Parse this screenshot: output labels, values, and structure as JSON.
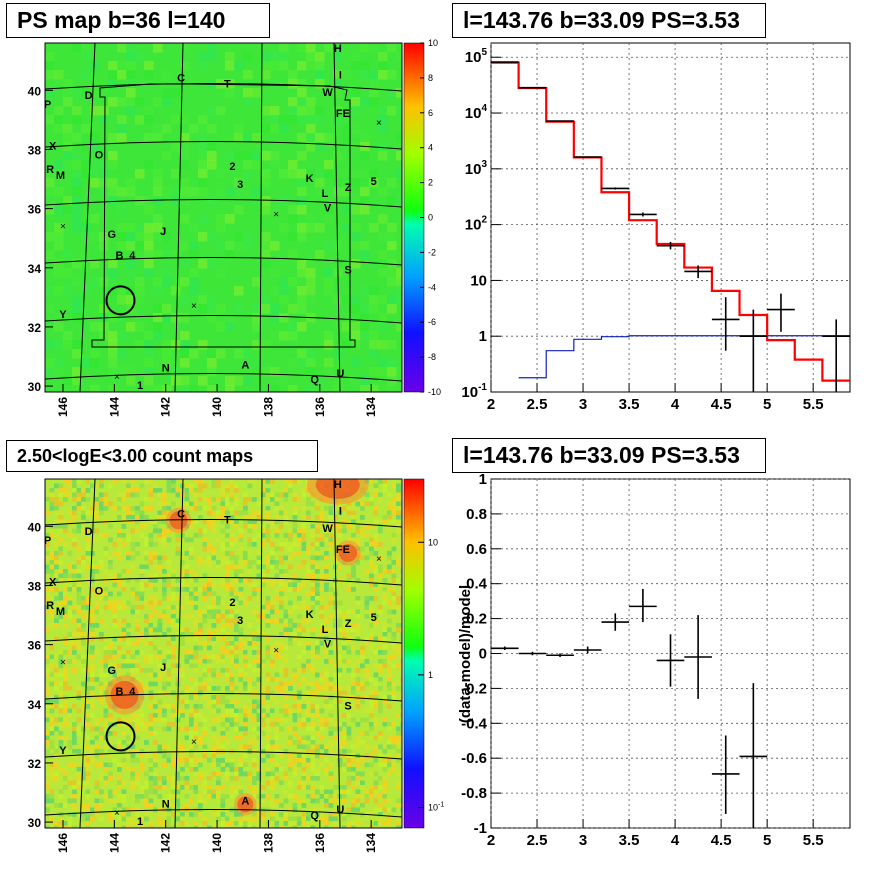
{
  "chart_data": [
    {
      "type": "heatmap",
      "title": "PS map b=36 l=140",
      "xlim": [
        146.7,
        132.8
      ],
      "ylim": [
        29.8,
        41.6
      ],
      "x_ticks": [
        146,
        144,
        142,
        140,
        138,
        136,
        134
      ],
      "y_ticks": [
        30,
        32,
        34,
        36,
        38,
        40
      ],
      "colorbar": {
        "min": -10,
        "max": 10,
        "ticks": [
          10,
          8,
          6,
          4,
          2,
          0,
          -2,
          -4,
          -6,
          -8,
          -10
        ]
      },
      "circle": {
        "l": 143.76,
        "b": 32.9
      },
      "source_labels": [
        {
          "t": "H",
          "l": 135.3,
          "b": 41.3
        },
        {
          "t": "C",
          "l": 141.4,
          "b": 40.3
        },
        {
          "t": "T",
          "l": 139.6,
          "b": 40.1
        },
        {
          "t": "I",
          "l": 135.2,
          "b": 40.4
        },
        {
          "t": "W",
          "l": 135.7,
          "b": 39.8
        },
        {
          "t": "D",
          "l": 145.0,
          "b": 39.7
        },
        {
          "t": "P",
          "l": 146.6,
          "b": 39.4
        },
        {
          "t": "FE",
          "l": 135.1,
          "b": 39.1
        },
        {
          "t": "X",
          "l": 146.4,
          "b": 38.0
        },
        {
          "t": "O",
          "l": 144.6,
          "b": 37.7
        },
        {
          "t": "2",
          "l": 139.4,
          "b": 37.3
        },
        {
          "t": "R",
          "l": 146.5,
          "b": 37.2
        },
        {
          "t": "M",
          "l": 146.1,
          "b": 37.0
        },
        {
          "t": "K",
          "l": 136.4,
          "b": 36.9
        },
        {
          "t": "3",
          "l": 139.1,
          "b": 36.7
        },
        {
          "t": "5",
          "l": 133.9,
          "b": 36.8
        },
        {
          "t": "Z",
          "l": 134.9,
          "b": 36.6
        },
        {
          "t": "L",
          "l": 135.8,
          "b": 36.4
        },
        {
          "t": "V",
          "l": 135.7,
          "b": 35.9
        },
        {
          "t": "G",
          "l": 144.1,
          "b": 35.0
        },
        {
          "t": "J",
          "l": 142.1,
          "b": 35.1
        },
        {
          "t": "B",
          "l": 143.8,
          "b": 34.3
        },
        {
          "t": "4",
          "l": 143.3,
          "b": 34.3
        },
        {
          "t": "S",
          "l": 134.9,
          "b": 33.8
        },
        {
          "t": "Y",
          "l": 146.0,
          "b": 32.3
        },
        {
          "t": "N",
          "l": 142.0,
          "b": 30.5
        },
        {
          "t": "A",
          "l": 138.9,
          "b": 30.6
        },
        {
          "t": "U",
          "l": 135.2,
          "b": 30.3
        },
        {
          "t": "Q",
          "l": 136.2,
          "b": 30.1
        },
        {
          "t": "1",
          "l": 143.0,
          "b": 29.9
        }
      ],
      "cross_markers": [
        {
          "l": 133.7,
          "b": 38.9
        },
        {
          "l": 137.7,
          "b": 35.8
        },
        {
          "l": 146.0,
          "b": 35.4
        },
        {
          "l": 140.9,
          "b": 32.7
        },
        {
          "l": 143.9,
          "b": 30.3
        }
      ]
    },
    {
      "type": "line",
      "title": "l=143.76 b=33.09 PS=3.53",
      "xlim": [
        2,
        5.9
      ],
      "ylim": [
        0.1,
        180000
      ],
      "log_y": true,
      "x_ticks": [
        "2",
        "2.5",
        "3",
        "3.5",
        "4",
        "4.5",
        "5",
        "5.5"
      ],
      "y_ticks": [
        {
          "v": 0.1,
          "base": "10",
          "exp": "-1"
        },
        {
          "v": 1,
          "base": "1",
          "exp": ""
        },
        {
          "v": 10,
          "base": "10",
          "exp": ""
        },
        {
          "v": 100,
          "base": "10",
          "exp": "2"
        },
        {
          "v": 1000,
          "base": "10",
          "exp": "3"
        },
        {
          "v": 10000,
          "base": "10",
          "exp": "4"
        },
        {
          "v": 100000,
          "base": "10",
          "exp": "5"
        }
      ],
      "model_total": [
        {
          "x0": 2.0,
          "x1": 2.3,
          "y": 80000
        },
        {
          "x0": 2.3,
          "x1": 2.6,
          "y": 28000
        },
        {
          "x0": 2.6,
          "x1": 2.9,
          "y": 7000
        },
        {
          "x0": 2.9,
          "x1": 3.2,
          "y": 1600
        },
        {
          "x0": 3.2,
          "x1": 3.5,
          "y": 380
        },
        {
          "x0": 3.5,
          "x1": 3.8,
          "y": 120
        },
        {
          "x0": 3.8,
          "x1": 4.1,
          "y": 45
        },
        {
          "x0": 4.1,
          "x1": 4.4,
          "y": 17
        },
        {
          "x0": 4.4,
          "x1": 4.7,
          "y": 6.5
        },
        {
          "x0": 4.7,
          "x1": 5.0,
          "y": 2.4
        },
        {
          "x0": 5.0,
          "x1": 5.3,
          "y": 0.85
        },
        {
          "x0": 5.3,
          "x1": 5.6,
          "y": 0.38
        },
        {
          "x0": 5.6,
          "x1": 5.9,
          "y": 0.16
        }
      ],
      "model_ps": [
        {
          "x0": 2.3,
          "x1": 2.6,
          "y": 0.18
        },
        {
          "x0": 2.6,
          "x1": 2.9,
          "y": 0.55
        },
        {
          "x0": 2.9,
          "x1": 3.2,
          "y": 0.88
        },
        {
          "x0": 3.2,
          "x1": 3.5,
          "y": 0.98
        },
        {
          "x0": 3.5,
          "x1": 5.9,
          "y": 1.02
        }
      ],
      "data_points": [
        {
          "x": 2.15,
          "y": 82000,
          "ex": 0.15,
          "lo": 81000,
          "hi": 83000
        },
        {
          "x": 2.45,
          "y": 28500,
          "ex": 0.15,
          "lo": 28200,
          "hi": 28800
        },
        {
          "x": 2.75,
          "y": 7200,
          "ex": 0.15,
          "lo": 7050,
          "hi": 7350
        },
        {
          "x": 3.05,
          "y": 1630,
          "ex": 0.15,
          "lo": 1590,
          "hi": 1670
        },
        {
          "x": 3.35,
          "y": 445,
          "ex": 0.15,
          "lo": 425,
          "hi": 465
        },
        {
          "x": 3.65,
          "y": 152,
          "ex": 0.15,
          "lo": 140,
          "hi": 165
        },
        {
          "x": 3.95,
          "y": 42,
          "ex": 0.15,
          "lo": 36,
          "hi": 49
        },
        {
          "x": 4.25,
          "y": 14.5,
          "ex": 0.15,
          "lo": 11,
          "hi": 18.5
        },
        {
          "x": 4.55,
          "y": 2.0,
          "ex": 0.15,
          "lo": 0.55,
          "hi": 5.0
        },
        {
          "x": 4.85,
          "y": 1.0,
          "ex": 0.15,
          "lo": 0.1,
          "hi": 3.0
        },
        {
          "x": 5.15,
          "y": 3.0,
          "ex": 0.15,
          "lo": 1.2,
          "hi": 5.8
        },
        {
          "x": 5.75,
          "y": 1.0,
          "ex": 0.15,
          "lo": 0.1,
          "hi": 2.0
        }
      ]
    },
    {
      "type": "heatmap",
      "title": "2.50<logE<3.00 count maps",
      "colorbar": {
        "log": true,
        "min": 0.07,
        "max": 30,
        "ticks": [
          {
            "v": 10,
            "base": "10",
            "exp": ""
          },
          {
            "v": 1,
            "base": "1",
            "exp": ""
          },
          {
            "v": 0.1,
            "base": "10",
            "exp": "-1"
          }
        ]
      }
    },
    {
      "type": "scatter",
      "title": "l=143.76 b=33.09 PS=3.53",
      "ylabel": "(data-model)/model",
      "xlim": [
        2,
        5.9
      ],
      "ylim": [
        -1,
        1
      ],
      "x_ticks": [
        "2",
        "2.5",
        "3",
        "3.5",
        "4",
        "4.5",
        "5",
        "5.5"
      ],
      "y_ticks": [
        "1",
        "0.8",
        "0.6",
        "0.4",
        "0.2",
        "0",
        "-0.2",
        "-0.4",
        "-0.6",
        "-0.8",
        "-1"
      ],
      "points": [
        {
          "x": 2.15,
          "y": 0.03,
          "ex": 0.15,
          "lo": 0.02,
          "hi": 0.04
        },
        {
          "x": 2.45,
          "y": 0.0,
          "ex": 0.15,
          "lo": -0.01,
          "hi": 0.01
        },
        {
          "x": 2.75,
          "y": -0.01,
          "ex": 0.15,
          "lo": -0.02,
          "hi": 0.0
        },
        {
          "x": 3.05,
          "y": 0.02,
          "ex": 0.15,
          "lo": 0.0,
          "hi": 0.04
        },
        {
          "x": 3.35,
          "y": 0.18,
          "ex": 0.15,
          "lo": 0.13,
          "hi": 0.23
        },
        {
          "x": 3.65,
          "y": 0.27,
          "ex": 0.15,
          "lo": 0.18,
          "hi": 0.37
        },
        {
          "x": 3.95,
          "y": -0.04,
          "ex": 0.15,
          "lo": -0.19,
          "hi": 0.11
        },
        {
          "x": 4.25,
          "y": -0.02,
          "ex": 0.15,
          "lo": -0.26,
          "hi": 0.22
        },
        {
          "x": 4.55,
          "y": -0.69,
          "ex": 0.15,
          "lo": -0.92,
          "hi": -0.47
        },
        {
          "x": 4.85,
          "y": -0.59,
          "ex": 0.15,
          "lo": -1.0,
          "hi": -0.17
        }
      ]
    }
  ]
}
